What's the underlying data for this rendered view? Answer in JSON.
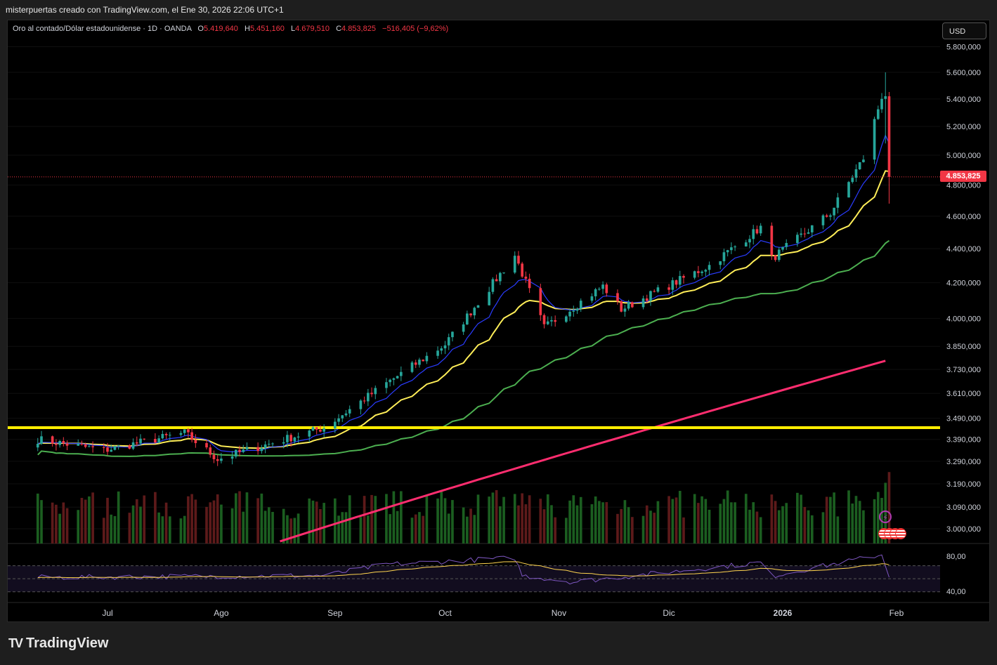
{
  "header": {
    "title": "misterpuertas creado con TradingView.com, el Ene 30, 2026 22:06 UTC+1"
  },
  "legend": {
    "symbol": "Oro al contado/Dólar estadounidense · 1D · OANDA",
    "open_label": "O",
    "open_value": "5.419,640",
    "high_label": "H",
    "high_value": "5.451,160",
    "low_label": "L",
    "low_value": "4.679,510",
    "close_label": "C",
    "close_value": "4.853,825",
    "change": "−516,405 (−9,62%)"
  },
  "currency_button": "USD",
  "last_price_tag": "4.853,825",
  "colors": {
    "up": "#26a69a",
    "down": "#f23645",
    "ema_blue": "#2a3cff",
    "ema_yellow": "#ffee58",
    "sma_green": "#4caf50",
    "sma_pink": "#ff2d6f",
    "horizontal_line": "#ffee00",
    "volume_up": "#1b5e20",
    "volume_down": "#5d1a1a",
    "rsi": "#7e57c2",
    "rsi_ma": "#ffd54f"
  },
  "footer": {
    "brand": "TradingView"
  },
  "icons": [
    "tradingview-logo-icon",
    "flash-icon",
    "us-flag-icon"
  ],
  "chart_data": {
    "type": "candlestick",
    "symbol": "XAUUSD",
    "timeframe": "1D",
    "price_axis_ticks": [
      "5.800,000",
      "5.600,000",
      "5.400,000",
      "5.200,000",
      "5.000,000",
      "4.800,000",
      "4.600,000",
      "4.400,000",
      "4.200,000",
      "4.000,000",
      "3.850,000",
      "3.730,000",
      "3.610,000",
      "3.490,000",
      "3.390,000",
      "3.290,000",
      "3.190,000",
      "3.090,000",
      "3.000,000"
    ],
    "price_axis_scale": "log",
    "price_axis_values": [
      5800,
      5600,
      5400,
      5200,
      5000,
      4800,
      4600,
      4400,
      4200,
      4000,
      3850,
      3730,
      3610,
      3490,
      3390,
      3290,
      3190,
      3090,
      3000
    ],
    "time_axis_ticks": [
      "Jul",
      "Ago",
      "Sep",
      "Oct",
      "Nov",
      "Dic",
      "2026",
      "Feb"
    ],
    "horizontal_line": 3445,
    "last_price": 4853.825,
    "ohlc_last": {
      "open": 5419.64,
      "high": 5451.16,
      "low": 4679.51,
      "close": 4853.825
    },
    "close_path_keypoints": [
      {
        "date": "2025-06-12",
        "close": 3390
      },
      {
        "date": "2025-06-30",
        "close": 3340
      },
      {
        "date": "2025-07-22",
        "close": 3420
      },
      {
        "date": "2025-07-31",
        "close": 3300
      },
      {
        "date": "2025-08-29",
        "close": 3445
      },
      {
        "date": "2025-09-15",
        "close": 3660
      },
      {
        "date": "2025-10-01",
        "close": 3860
      },
      {
        "date": "2025-10-20",
        "close": 4360
      },
      {
        "date": "2025-10-28",
        "close": 3950
      },
      {
        "date": "2025-11-13",
        "close": 4180
      },
      {
        "date": "2025-11-18",
        "close": 4050
      },
      {
        "date": "2025-12-12",
        "close": 4300
      },
      {
        "date": "2025-12-26",
        "close": 4530
      },
      {
        "date": "2025-12-29",
        "close": 4340
      },
      {
        "date": "2026-01-14",
        "close": 4620
      },
      {
        "date": "2026-01-23",
        "close": 4980
      },
      {
        "date": "2026-01-28",
        "close": 5420
      },
      {
        "date": "2026-01-30",
        "close": 4853.825
      }
    ],
    "indicator_lines": [
      {
        "name": "",
        "color": "blue",
        "last": 5030
      },
      {
        "name": "",
        "color": "yellow",
        "last": 4840
      },
      {
        "name": "",
        "color": "green",
        "last": 4470
      },
      {
        "name": "",
        "color": "pink",
        "last": 3780
      }
    ],
    "rsi_axis_ticks": [
      "80,00",
      "40,00"
    ],
    "rsi_bands": {
      "upper": 70,
      "middle": 50,
      "lower": 30
    },
    "rsi_keypoints": [
      {
        "date": "2025-06-12",
        "rsi": 52
      },
      {
        "date": "2025-08-29",
        "rsi": 55
      },
      {
        "date": "2025-09-15",
        "rsi": 72
      },
      {
        "date": "2025-10-20",
        "rsi": 82
      },
      {
        "date": "2025-10-22",
        "rsi": 55
      },
      {
        "date": "2025-11-05",
        "rsi": 45
      },
      {
        "date": "2025-12-26",
        "rsi": 75
      },
      {
        "date": "2025-12-29",
        "rsi": 54
      },
      {
        "date": "2026-01-28",
        "rsi": 87
      },
      {
        "date": "2026-01-30",
        "rsi": 55
      }
    ]
  }
}
